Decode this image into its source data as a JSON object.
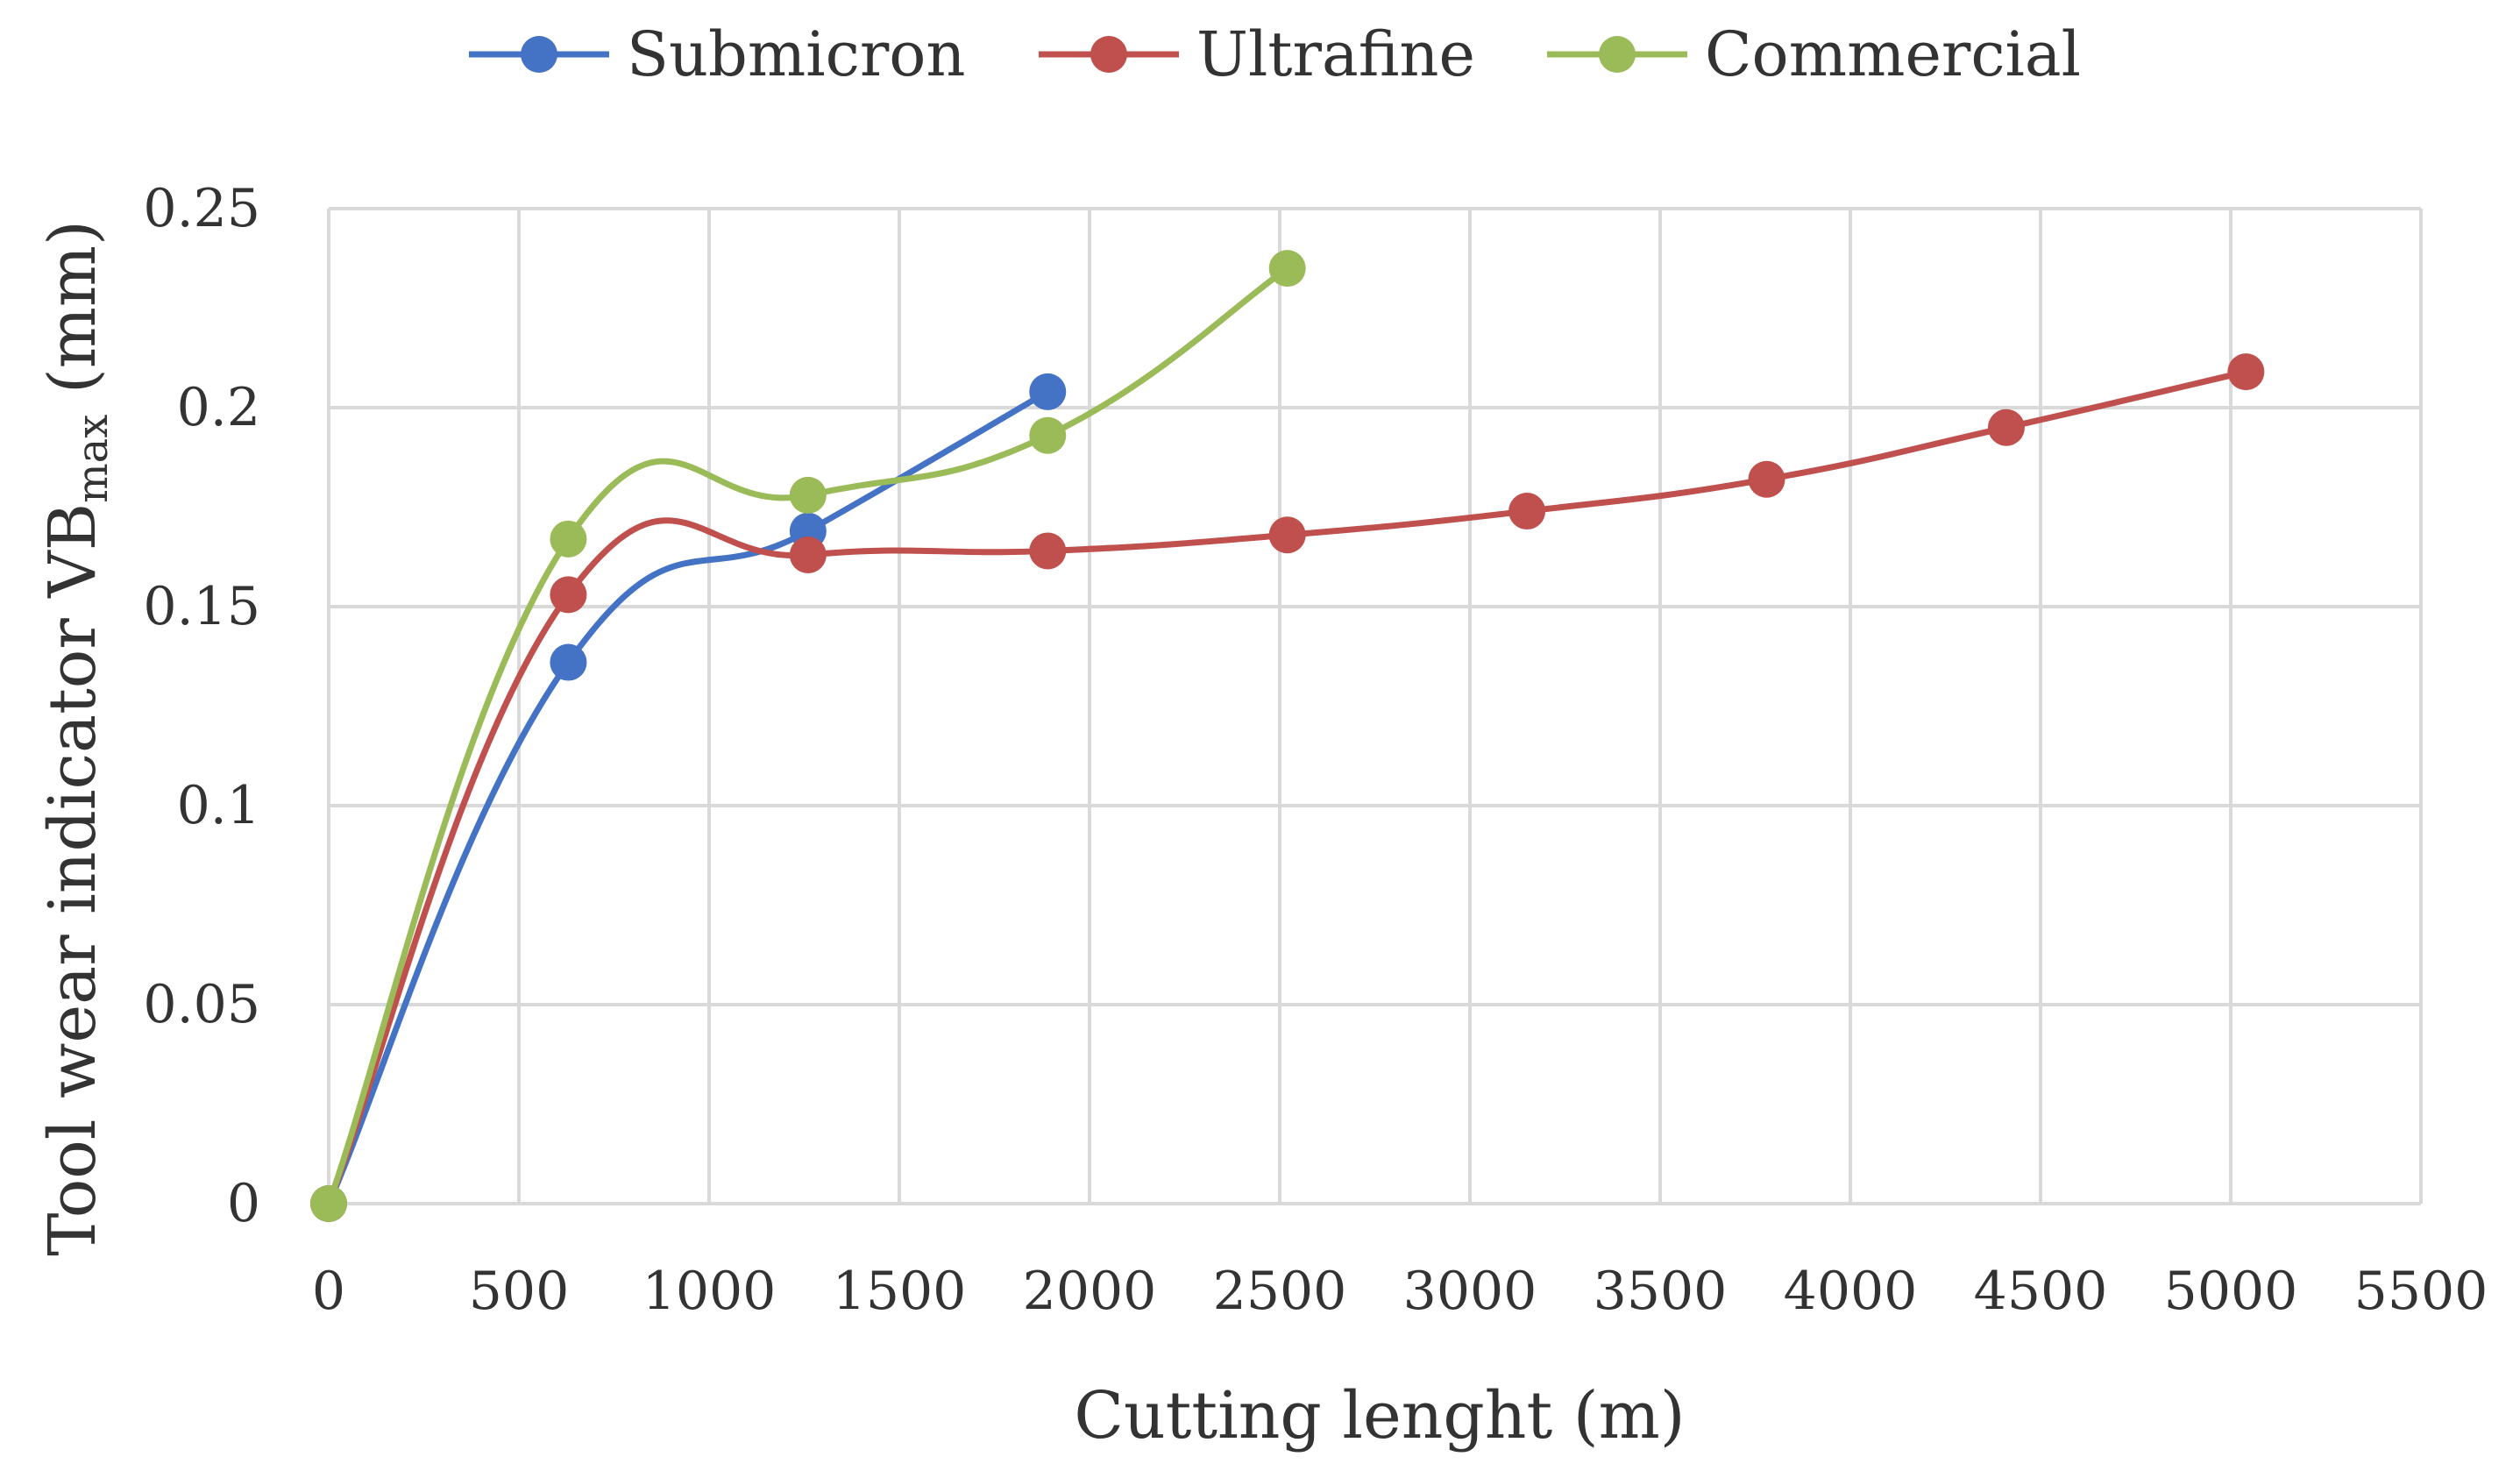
{
  "chart_data": {
    "type": "line",
    "title": "",
    "xlabel": "Cutting lenght (m)",
    "ylabel_main": "Tool wear indicator VB",
    "ylabel_sub": "max",
    "ylabel_unit": " (mm)",
    "xlim": [
      0,
      5500
    ],
    "ylim": [
      0,
      0.25
    ],
    "xticks": [
      0,
      500,
      1000,
      1500,
      2000,
      2500,
      3000,
      3500,
      4000,
      4500,
      5000,
      5500
    ],
    "yticks": [
      0,
      0.05,
      0.1,
      0.15,
      0.2,
      0.25
    ],
    "xtick_labels": [
      "0",
      "500",
      "1000",
      "1500",
      "2000",
      "2500",
      "3000",
      "3500",
      "4000",
      "4500",
      "5000",
      "5500"
    ],
    "ytick_labels": [
      "0",
      "0.05",
      "0.1",
      "0.15",
      "0.2",
      "0.25"
    ],
    "grid": true,
    "legend_position": "top",
    "series": [
      {
        "name": "Submicron",
        "color": "#4472c4",
        "x": [
          0,
          630,
          1260,
          1890
        ],
        "y": [
          0,
          0.136,
          0.169,
          0.204
        ]
      },
      {
        "name": "Ultrafine",
        "color": "#c0504d",
        "x": [
          0,
          630,
          1260,
          1890,
          2520,
          3150,
          3780,
          4410,
          5040
        ],
        "y": [
          0,
          0.153,
          0.163,
          0.164,
          0.168,
          0.174,
          0.182,
          0.195,
          0.209
        ]
      },
      {
        "name": "Commercial",
        "color": "#9bbb59",
        "x": [
          0,
          630,
          1260,
          1890,
          2520
        ],
        "y": [
          0,
          0.167,
          0.178,
          0.193,
          0.235
        ]
      }
    ]
  }
}
